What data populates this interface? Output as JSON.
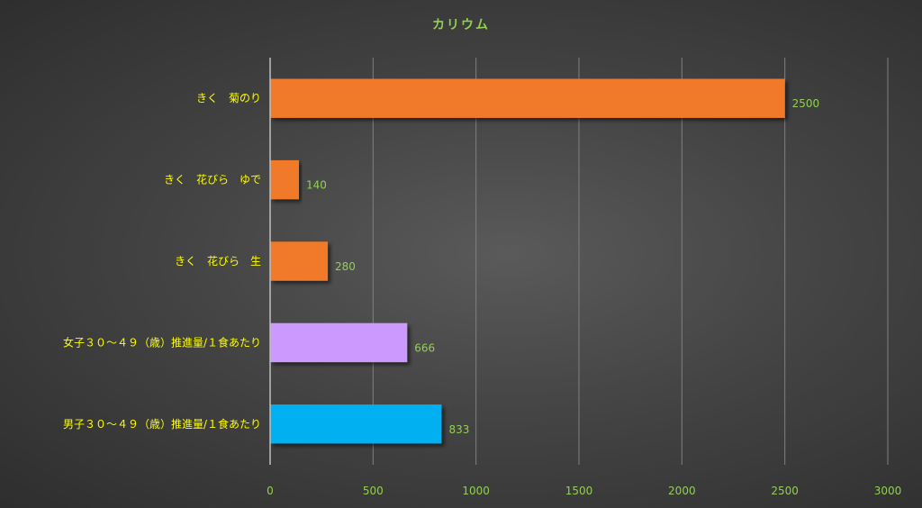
{
  "chart_data": {
    "type": "bar",
    "orientation": "horizontal",
    "title": "カリウム",
    "categories": [
      "きく　菊のり",
      "きく　花びら　ゆで",
      "きく　花びら　生",
      "女子３０～４９（歳）推進量/１食あたり",
      "男子３０～４９（歳）推進量/１食あたり"
    ],
    "values": [
      2500,
      140,
      280,
      666,
      833
    ],
    "bar_colors": [
      "#f07a2a",
      "#f07a2a",
      "#f07a2a",
      "#cc99ff",
      "#00b0f0"
    ],
    "xlim": [
      0,
      3000
    ],
    "xticks": [
      0,
      500,
      1000,
      1500,
      2000,
      2500,
      3000
    ],
    "grid": true,
    "data_labels": true
  },
  "colors": {
    "title": "#92d050",
    "category_text": "#ffff00",
    "tick_text": "#92d050",
    "data_label": "#92d050",
    "gridline": "#808080",
    "axis": "#bfbfbf"
  }
}
